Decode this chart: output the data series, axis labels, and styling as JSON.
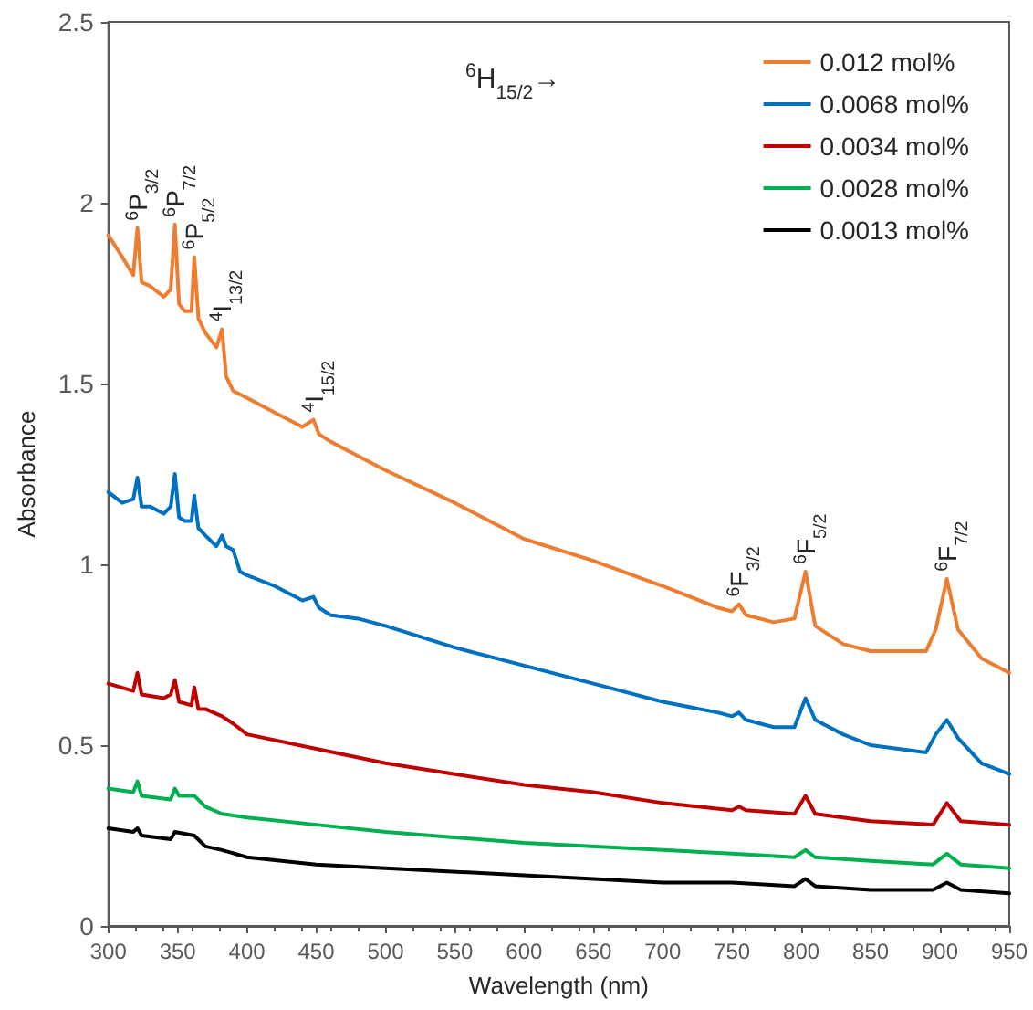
{
  "chart_data": {
    "type": "line",
    "xlabel": "Wavelength (nm)",
    "ylabel": "Absorbance",
    "xlim": [
      300,
      950
    ],
    "xticks": [
      300,
      350,
      400,
      450,
      500,
      550,
      600,
      650,
      700,
      750,
      800,
      850,
      900,
      950
    ],
    "ylim": [
      0,
      2.5
    ],
    "yticks": [
      0,
      0.5,
      1,
      1.5,
      2,
      2.5
    ],
    "grid": false,
    "legend": "top right",
    "marker": "none",
    "line_style": "solid",
    "annotations": [
      "$^{6}$H$_{15/2}$→",
      {
        "text": "$^{6}$P$_{3/2}$",
        "x": 321,
        "y": 1.93
      },
      {
        "text": "$^{6}$P$_{7/2}$",
        "x": 348,
        "y": 1.94
      },
      {
        "text": "$^{6}$P$_{5/2}$",
        "x": 362,
        "y": 1.85
      },
      {
        "text": "$^{4}$I$_{13/2}$",
        "x": 382,
        "y": 1.65
      },
      {
        "text": "$^{4}$I$_{15/2}$",
        "x": 448,
        "y": 1.4
      },
      {
        "text": "$^{6}$F$_{3/2}$",
        "x": 755,
        "y": 0.89
      },
      {
        "text": "$^{6}$F$_{5/2}$",
        "x": 803,
        "y": 0.98
      },
      {
        "text": "$^{6}$F$_{7/2}$",
        "x": 905,
        "y": 0.96
      }
    ],
    "series": [
      {
        "name": "0.012 mol%",
        "color": "#ed7d31",
        "x": [
          300,
          310,
          318,
          321,
          324,
          330,
          340,
          345,
          348,
          351,
          355,
          360,
          362,
          365,
          370,
          378,
          382,
          385,
          390,
          400,
          420,
          440,
          448,
          452,
          460,
          480,
          500,
          550,
          600,
          650,
          700,
          740,
          750,
          755,
          760,
          780,
          795,
          803,
          810,
          830,
          850,
          870,
          890,
          897,
          905,
          913,
          930,
          950
        ],
        "values": [
          1.91,
          1.85,
          1.8,
          1.93,
          1.78,
          1.77,
          1.74,
          1.76,
          1.94,
          1.72,
          1.7,
          1.7,
          1.85,
          1.68,
          1.64,
          1.6,
          1.65,
          1.52,
          1.48,
          1.46,
          1.42,
          1.38,
          1.4,
          1.36,
          1.34,
          1.3,
          1.26,
          1.17,
          1.07,
          1.01,
          0.94,
          0.88,
          0.87,
          0.89,
          0.86,
          0.84,
          0.85,
          0.98,
          0.83,
          0.78,
          0.76,
          0.76,
          0.76,
          0.82,
          0.96,
          0.82,
          0.74,
          0.7
        ]
      },
      {
        "name": "0.0068 mol%",
        "color": "#0070c0",
        "x": [
          300,
          310,
          318,
          321,
          324,
          330,
          340,
          345,
          348,
          351,
          355,
          360,
          362,
          365,
          370,
          378,
          382,
          385,
          390,
          395,
          400,
          420,
          440,
          448,
          452,
          460,
          480,
          500,
          550,
          600,
          650,
          700,
          740,
          750,
          755,
          760,
          780,
          795,
          803,
          810,
          830,
          850,
          870,
          890,
          897,
          905,
          913,
          930,
          950
        ],
        "values": [
          1.2,
          1.17,
          1.18,
          1.24,
          1.16,
          1.16,
          1.14,
          1.16,
          1.25,
          1.13,
          1.12,
          1.12,
          1.19,
          1.1,
          1.08,
          1.05,
          1.08,
          1.05,
          1.04,
          0.98,
          0.97,
          0.94,
          0.9,
          0.91,
          0.88,
          0.86,
          0.85,
          0.83,
          0.77,
          0.72,
          0.67,
          0.62,
          0.59,
          0.58,
          0.59,
          0.57,
          0.55,
          0.55,
          0.63,
          0.57,
          0.53,
          0.5,
          0.49,
          0.48,
          0.53,
          0.57,
          0.52,
          0.45,
          0.42
        ]
      },
      {
        "name": "0.0034 mol%",
        "color": "#c00000",
        "x": [
          300,
          318,
          321,
          324,
          340,
          345,
          348,
          351,
          360,
          362,
          365,
          370,
          382,
          390,
          400,
          450,
          500,
          550,
          600,
          650,
          700,
          750,
          755,
          760,
          795,
          803,
          810,
          850,
          895,
          905,
          915,
          950
        ],
        "values": [
          0.67,
          0.65,
          0.7,
          0.64,
          0.63,
          0.64,
          0.68,
          0.62,
          0.61,
          0.66,
          0.6,
          0.6,
          0.58,
          0.56,
          0.53,
          0.49,
          0.45,
          0.42,
          0.39,
          0.37,
          0.34,
          0.32,
          0.33,
          0.32,
          0.31,
          0.36,
          0.31,
          0.29,
          0.28,
          0.34,
          0.29,
          0.28
        ]
      },
      {
        "name": "0.0028 mol%",
        "color": "#00b050",
        "x": [
          300,
          318,
          321,
          324,
          345,
          348,
          351,
          362,
          370,
          382,
          400,
          450,
          500,
          600,
          700,
          750,
          795,
          803,
          810,
          850,
          895,
          905,
          915,
          950
        ],
        "values": [
          0.38,
          0.37,
          0.4,
          0.36,
          0.35,
          0.38,
          0.36,
          0.36,
          0.33,
          0.31,
          0.3,
          0.28,
          0.26,
          0.23,
          0.21,
          0.2,
          0.19,
          0.21,
          0.19,
          0.18,
          0.17,
          0.2,
          0.17,
          0.16
        ]
      },
      {
        "name": "0.0013 mol%",
        "color": "#000000",
        "x": [
          300,
          318,
          321,
          324,
          345,
          348,
          362,
          370,
          382,
          400,
          450,
          500,
          600,
          700,
          750,
          795,
          803,
          810,
          850,
          895,
          905,
          915,
          950
        ],
        "values": [
          0.27,
          0.26,
          0.27,
          0.25,
          0.24,
          0.26,
          0.25,
          0.22,
          0.21,
          0.19,
          0.17,
          0.16,
          0.14,
          0.12,
          0.12,
          0.11,
          0.13,
          0.11,
          0.1,
          0.1,
          0.12,
          0.1,
          0.09
        ]
      }
    ]
  }
}
